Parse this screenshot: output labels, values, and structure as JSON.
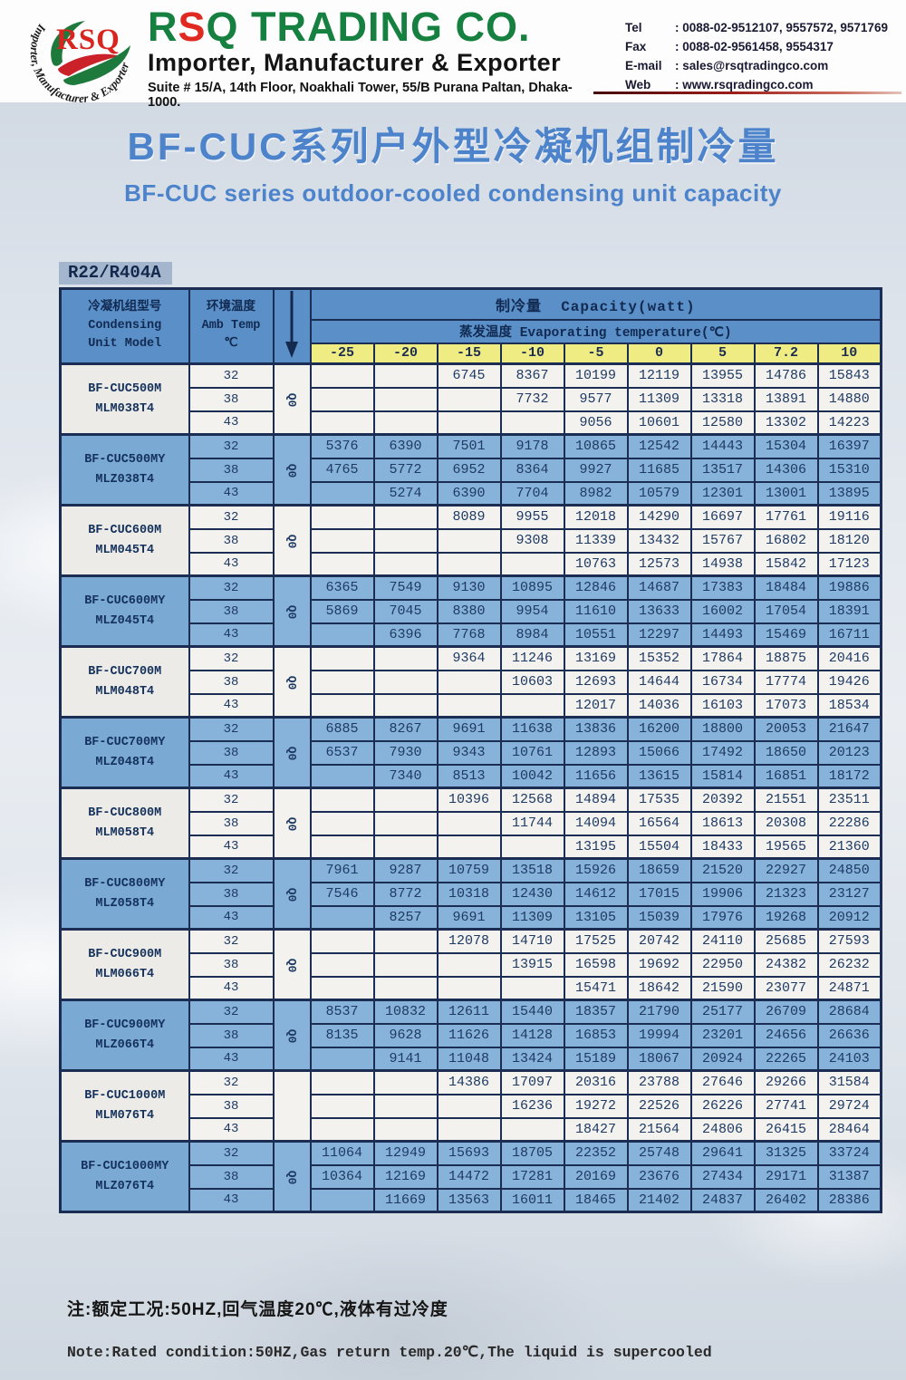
{
  "header": {
    "logo_text": "RSQ",
    "logo_ring_text": "Importer, Manufacturer & Exporter",
    "company_name_parts": [
      "R",
      "S",
      "Q TRADING CO."
    ],
    "tagline": "Importer, Manufacturer & Exporter",
    "address": "Suite # 15/A, 14th Floor, Noakhali Tower, 55/B Purana Paltan, Dhaka-1000.",
    "contacts": [
      {
        "label": "Tel",
        "value": ": 0088-02-9512107, 9557572, 9571769"
      },
      {
        "label": "Fax",
        "value": ": 0088-02-9561458, 9554317"
      },
      {
        "label": "E-mail",
        "value": ": sales@rsqtradingco.com"
      },
      {
        "label": "Web",
        "value": ": www.rsqradingco.com"
      }
    ]
  },
  "title_cn": "BF-CUC系列户外型冷凝机组制冷量",
  "title_en": "BF-CUC series outdoor-cooled condensing unit capacity",
  "refrigerant_label": "R22/R404A",
  "colors": {
    "header_blue": "#5b8fc7",
    "row_blue": "#87b3da",
    "row_light": "#f3f2ef",
    "temp_yellow": "#efec83",
    "border_navy": "#1b2d52",
    "title_blue": "#4c83cb",
    "brand_green": "#15803f",
    "brand_red": "#e02a21"
  },
  "table": {
    "header": {
      "col1_cn": "冷凝机组型号",
      "col1_en1": "Condensing",
      "col1_en2": "Unit Model",
      "col2_cn": "环境温度",
      "col2_en": "Amb Temp",
      "col2_unit": "℃",
      "capacity_cn": "制冷量",
      "capacity_en": "Capacity(watt)",
      "evap_cn": "蒸发温度",
      "evap_en": "Evaporating temperature(℃)",
      "temps": [
        "-25",
        "-20",
        "-15",
        "-10",
        "-5",
        "0",
        "5",
        "7.2",
        "10"
      ]
    },
    "amb_temps": [
      "32",
      "38",
      "43"
    ],
    "groups": [
      {
        "model1": "BF-CUC500M",
        "model2": "MLM038T4",
        "q": "Q0",
        "shade": "light",
        "rows": [
          [
            "",
            "",
            "6745",
            "8367",
            "10199",
            "12119",
            "13955",
            "14786",
            "15843"
          ],
          [
            "",
            "",
            "",
            "7732",
            "9577",
            "11309",
            "13318",
            "13891",
            "14880"
          ],
          [
            "",
            "",
            "",
            "",
            "9056",
            "10601",
            "12580",
            "13302",
            "14223"
          ]
        ]
      },
      {
        "model1": "BF-CUC500MY",
        "model2": "MLZ038T4",
        "q": "Q0",
        "shade": "blue",
        "rows": [
          [
            "5376",
            "6390",
            "7501",
            "9178",
            "10865",
            "12542",
            "14443",
            "15304",
            "16397"
          ],
          [
            "4765",
            "5772",
            "6952",
            "8364",
            "9927",
            "11685",
            "13517",
            "14306",
            "15310"
          ],
          [
            "",
            "5274",
            "6390",
            "7704",
            "8982",
            "10579",
            "12301",
            "13001",
            "13895"
          ]
        ]
      },
      {
        "model1": "BF-CUC600M",
        "model2": "MLM045T4",
        "q": "Q0",
        "shade": "light",
        "rows": [
          [
            "",
            "",
            "8089",
            "9955",
            "12018",
            "14290",
            "16697",
            "17761",
            "19116"
          ],
          [
            "",
            "",
            "",
            "9308",
            "11339",
            "13432",
            "15767",
            "16802",
            "18120"
          ],
          [
            "",
            "",
            "",
            "",
            "10763",
            "12573",
            "14938",
            "15842",
            "17123"
          ]
        ]
      },
      {
        "model1": "BF-CUC600MY",
        "model2": "MLZ045T4",
        "q": "Q0",
        "shade": "blue",
        "rows": [
          [
            "6365",
            "7549",
            "9130",
            "10895",
            "12846",
            "14687",
            "17383",
            "18484",
            "19886"
          ],
          [
            "5869",
            "7045",
            "8380",
            "9954",
            "11610",
            "13633",
            "16002",
            "17054",
            "18391"
          ],
          [
            "",
            "6396",
            "7768",
            "8984",
            "10551",
            "12297",
            "14493",
            "15469",
            "16711"
          ]
        ]
      },
      {
        "model1": "BF-CUC700M",
        "model2": "MLM048T4",
        "q": "Q0",
        "shade": "light",
        "rows": [
          [
            "",
            "",
            "9364",
            "11246",
            "13169",
            "15352",
            "17864",
            "18875",
            "20416"
          ],
          [
            "",
            "",
            "",
            "10603",
            "12693",
            "14644",
            "16734",
            "17774",
            "19426"
          ],
          [
            "",
            "",
            "",
            "",
            "12017",
            "14036",
            "16103",
            "17073",
            "18534"
          ]
        ]
      },
      {
        "model1": "BF-CUC700MY",
        "model2": "MLZ048T4",
        "q": "Q0",
        "shade": "blue",
        "rows": [
          [
            "6885",
            "8267",
            "9691",
            "11638",
            "13836",
            "16200",
            "18800",
            "20053",
            "21647"
          ],
          [
            "6537",
            "7930",
            "9343",
            "10761",
            "12893",
            "15066",
            "17492",
            "18650",
            "20123"
          ],
          [
            "",
            "7340",
            "8513",
            "10042",
            "11656",
            "13615",
            "15814",
            "16851",
            "18172"
          ]
        ]
      },
      {
        "model1": "BF-CUC800M",
        "model2": "MLM058T4",
        "q": "Q0",
        "shade": "light",
        "rows": [
          [
            "",
            "",
            "10396",
            "12568",
            "14894",
            "17535",
            "20392",
            "21551",
            "23511"
          ],
          [
            "",
            "",
            "",
            "11744",
            "14094",
            "16564",
            "18613",
            "20308",
            "22286"
          ],
          [
            "",
            "",
            "",
            "",
            "13195",
            "15504",
            "18433",
            "19565",
            "21360"
          ]
        ]
      },
      {
        "model1": "BF-CUC800MY",
        "model2": "MLZ058T4",
        "q": "Q0",
        "shade": "blue",
        "rows": [
          [
            "7961",
            "9287",
            "10759",
            "13518",
            "15926",
            "18659",
            "21520",
            "22927",
            "24850"
          ],
          [
            "7546",
            "8772",
            "10318",
            "12430",
            "14612",
            "17015",
            "19906",
            "21323",
            "23127"
          ],
          [
            "",
            "8257",
            "9691",
            "11309",
            "13105",
            "15039",
            "17976",
            "19268",
            "20912"
          ]
        ]
      },
      {
        "model1": "BF-CUC900M",
        "model2": "MLM066T4",
        "q": "Q0",
        "shade": "light",
        "rows": [
          [
            "",
            "",
            "12078",
            "14710",
            "17525",
            "20742",
            "24110",
            "25685",
            "27593"
          ],
          [
            "",
            "",
            "",
            "13915",
            "16598",
            "19692",
            "22950",
            "24382",
            "26232"
          ],
          [
            "",
            "",
            "",
            "",
            "15471",
            "18642",
            "21590",
            "23077",
            "24871"
          ]
        ]
      },
      {
        "model1": "BF-CUC900MY",
        "model2": "MLZ066T4",
        "q": "Q0",
        "shade": "blue",
        "rows": [
          [
            "8537",
            "10832",
            "12611",
            "15440",
            "18357",
            "21790",
            "25177",
            "26709",
            "28684"
          ],
          [
            "8135",
            "9628",
            "11626",
            "14128",
            "16853",
            "19994",
            "23201",
            "24656",
            "26636"
          ],
          [
            "",
            "9141",
            "11048",
            "13424",
            "15189",
            "18067",
            "20924",
            "22265",
            "24103"
          ]
        ]
      },
      {
        "model1": "BF-CUC1000M",
        "model2": "MLM076T4",
        "q": "",
        "shade": "light",
        "rows": [
          [
            "",
            "",
            "14386",
            "17097",
            "20316",
            "23788",
            "27646",
            "29266",
            "31584"
          ],
          [
            "",
            "",
            "",
            "16236",
            "19272",
            "22526",
            "26226",
            "27741",
            "29724"
          ],
          [
            "",
            "",
            "",
            "",
            "18427",
            "21564",
            "24806",
            "26415",
            "28464"
          ]
        ]
      },
      {
        "model1": "BF-CUC1000MY",
        "model2": "MLZ076T4",
        "q": "Q0",
        "shade": "blue",
        "rows": [
          [
            "11064",
            "12949",
            "15693",
            "18705",
            "22352",
            "25748",
            "29641",
            "31325",
            "33724"
          ],
          [
            "10364",
            "12169",
            "14472",
            "17281",
            "20169",
            "23676",
            "27434",
            "29171",
            "31387"
          ],
          [
            "",
            "11669",
            "13563",
            "16011",
            "18465",
            "21402",
            "24837",
            "26402",
            "28386"
          ]
        ]
      }
    ]
  },
  "notes": {
    "cn": "注:额定工况:50HZ,回气温度20℃,液体有过冷度",
    "en": "Note:Rated condition:50HZ,Gas return temp.20℃,The liquid is supercooled"
  }
}
